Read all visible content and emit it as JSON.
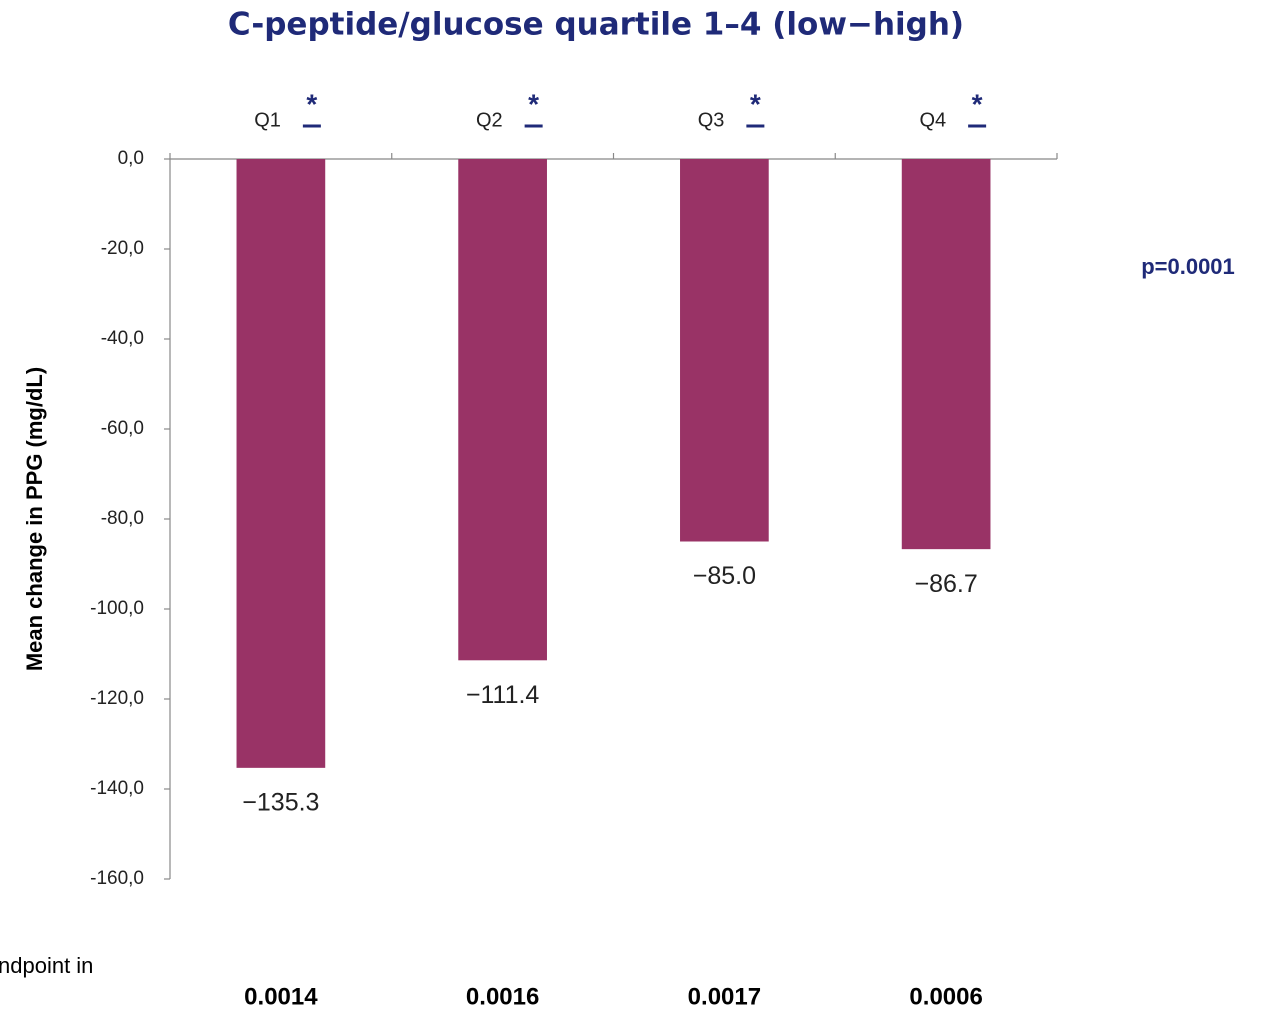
{
  "chart_data": {
    "type": "bar",
    "title": "C-peptide/glucose quartile 1–4 (low−high)",
    "y_label": "Mean change in PPG (mg/dL)",
    "annotation": "p=0.0001",
    "footnote": "ndpoint in",
    "categories": [
      "Q1",
      "Q2",
      "Q3",
      "Q4"
    ],
    "category_markers": [
      "*",
      "*",
      "*",
      "*"
    ],
    "values": [
      -135.3,
      -111.4,
      -85.0,
      -86.7
    ],
    "value_labels": [
      "−135.3",
      "−111.4",
      "−85.0",
      "−86.7"
    ],
    "p_values": [
      "0.0014",
      "0.0016",
      "0.0017",
      "0.0006"
    ],
    "color": "#993366",
    "ylim": [
      -160,
      0
    ],
    "yticks": [
      {
        "value": 0,
        "label": "0,0"
      },
      {
        "value": -20,
        "label": "-20,0"
      },
      {
        "value": -40,
        "label": "-40,0"
      },
      {
        "value": -60,
        "label": "-60,0"
      },
      {
        "value": -80,
        "label": "-80,0"
      },
      {
        "value": -100,
        "label": "-100,0"
      },
      {
        "value": -120,
        "label": "-120,0"
      },
      {
        "value": -140,
        "label": "-140,0"
      },
      {
        "value": -160,
        "label": "-160,0"
      }
    ]
  }
}
